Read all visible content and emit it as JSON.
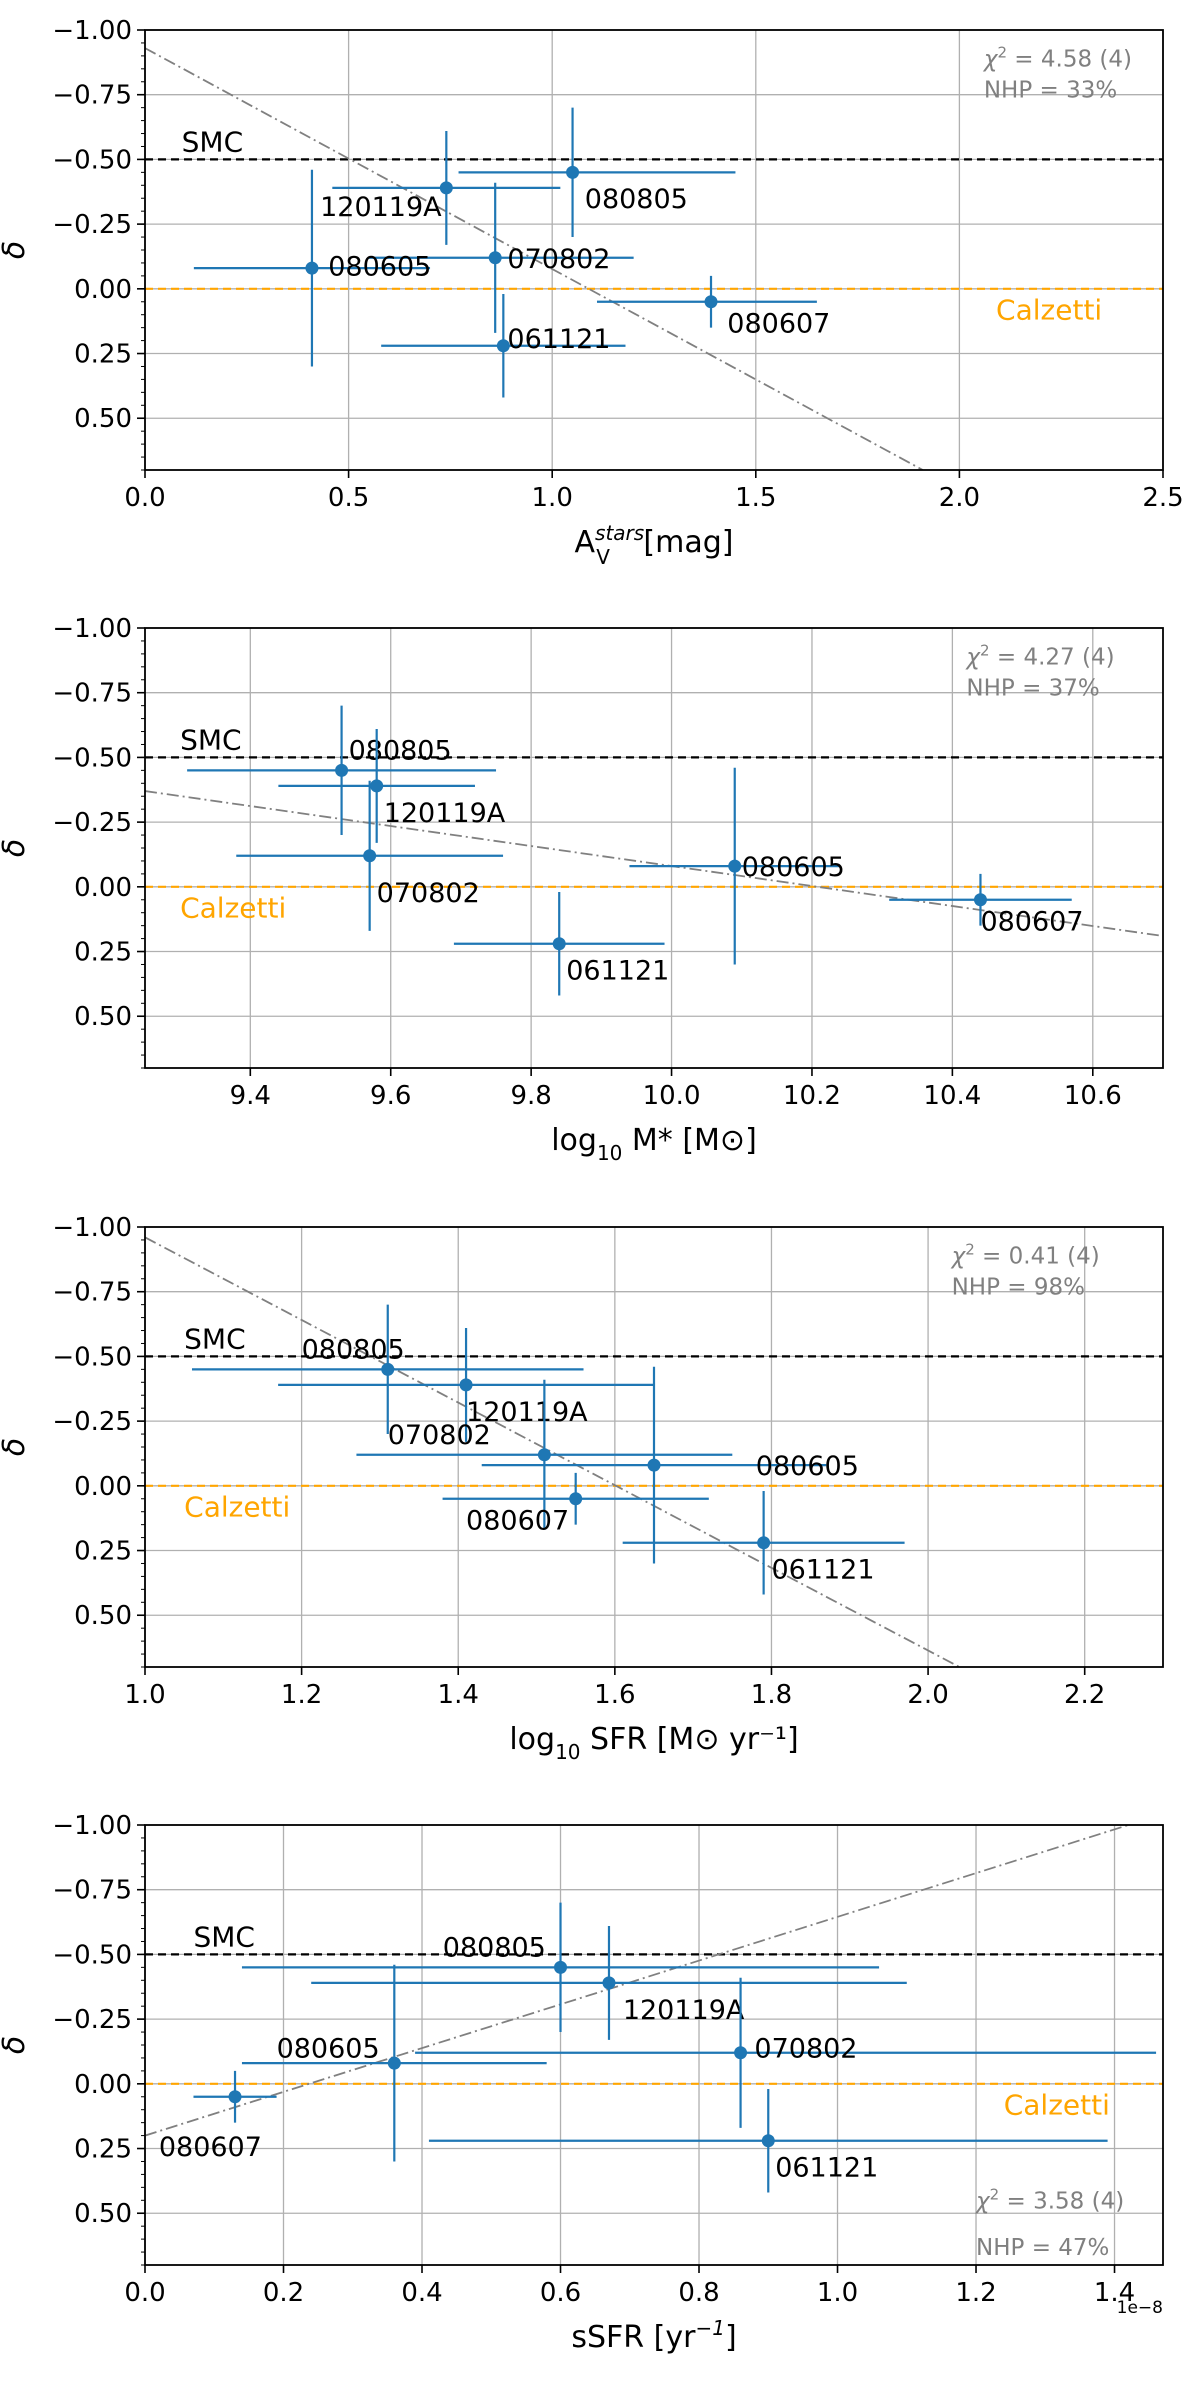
{
  "colors": {
    "point": "#1f77b4",
    "smc": "#000000",
    "calzetti": "#ffa500",
    "fit": "#808080",
    "grid": "#b0b0b0",
    "stat_text": "#808080"
  },
  "chart_data": [
    {
      "type": "scatter",
      "xlabel_main": "A",
      "xlabel_sub": "V",
      "xlabel_sup": "stars",
      "xlabel_tail": " [mag]",
      "ylabel": "δ",
      "xlim": [
        0.0,
        2.5
      ],
      "ylim": [
        -1.0,
        0.7
      ],
      "xticks": [
        0.0,
        0.5,
        1.0,
        1.5,
        2.0,
        2.5
      ],
      "xtick_labels": [
        "0.0",
        "0.5",
        "1.0",
        "1.5",
        "2.0",
        "2.5"
      ],
      "yticks": [
        -1.0,
        -0.75,
        -0.5,
        -0.25,
        0.0,
        0.25,
        0.5
      ],
      "ytick_labels": [
        "−1.00",
        "−0.75",
        "−0.50",
        "−0.25",
        "0.00",
        "0.25",
        "0.50"
      ],
      "x_offset_label": "",
      "smc": {
        "value": -0.5,
        "label": "SMC",
        "label_pos": [
          0.09,
          -0.57
        ]
      },
      "calzetti": {
        "value": 0.0,
        "label": "Calzetti",
        "label_pos": [
          2.09,
          0.08
        ]
      },
      "fit": {
        "x": [
          0.0,
          1.91
        ],
        "y": [
          -0.93,
          0.7
        ]
      },
      "stats": {
        "chi2_symbol": "χ",
        "chi2_exp": "2",
        "chi2": " = 4.58 (4)",
        "nhp": "NHP = 33%",
        "pos": [
          2.06,
          -0.89
        ],
        "nhp_pos": [
          2.06,
          -0.77
        ]
      },
      "points": [
        {
          "label": "080805",
          "x": 1.05,
          "xerr_lo": 0.28,
          "xerr_hi": 0.4,
          "y": -0.45,
          "yerr_lo": 0.25,
          "yerr_hi": 0.25,
          "label_pos": [
            1.08,
            -0.35
          ]
        },
        {
          "label": "120119A",
          "x": 0.74,
          "xerr_lo": 0.28,
          "xerr_hi": 0.28,
          "y": -0.39,
          "yerr_lo": 0.22,
          "yerr_hi": 0.22,
          "label_pos": [
            0.43,
            -0.32
          ]
        },
        {
          "label": "070802",
          "x": 0.86,
          "xerr_lo": 0.31,
          "xerr_hi": 0.34,
          "y": -0.12,
          "yerr_lo": 0.29,
          "yerr_hi": 0.29,
          "label_pos": [
            0.89,
            -0.12
          ]
        },
        {
          "label": "080605",
          "x": 0.41,
          "xerr_lo": 0.29,
          "xerr_hi": 0.29,
          "y": -0.08,
          "yerr_lo": 0.38,
          "yerr_hi": 0.38,
          "label_pos": [
            0.45,
            -0.09
          ]
        },
        {
          "label": "080607",
          "x": 1.39,
          "xerr_lo": 0.28,
          "xerr_hi": 0.26,
          "y": 0.05,
          "yerr_lo": 0.1,
          "yerr_hi": 0.1,
          "label_pos": [
            1.43,
            0.13
          ]
        },
        {
          "label": "061121",
          "x": 0.88,
          "xerr_lo": 0.3,
          "xerr_hi": 0.3,
          "y": 0.22,
          "yerr_lo": 0.2,
          "yerr_hi": 0.2,
          "label_pos": [
            0.89,
            0.19
          ]
        }
      ]
    },
    {
      "type": "scatter",
      "xlabel_main": "log",
      "xlabel_sub": "10",
      "xlabel_sup": "",
      "xlabel_tail": " M* [M⊙]",
      "ylabel": "δ",
      "xlim": [
        9.25,
        10.7
      ],
      "ylim": [
        -1.0,
        0.7
      ],
      "xticks": [
        9.4,
        9.6,
        9.8,
        10.0,
        10.2,
        10.4,
        10.6
      ],
      "xtick_labels": [
        "9.4",
        "9.6",
        "9.8",
        "10.0",
        "10.2",
        "10.4",
        "10.6"
      ],
      "yticks": [
        -1.0,
        -0.75,
        -0.5,
        -0.25,
        0.0,
        0.25,
        0.5
      ],
      "ytick_labels": [
        "−1.00",
        "−0.75",
        "−0.50",
        "−0.25",
        "0.00",
        "0.25",
        "0.50"
      ],
      "x_offset_label": "",
      "smc": {
        "value": -0.5,
        "label": "SMC",
        "label_pos": [
          9.3,
          -0.57
        ]
      },
      "calzetti": {
        "value": 0.0,
        "label": "Calzetti",
        "label_pos": [
          9.3,
          0.08
        ]
      },
      "fit": {
        "x": [
          9.25,
          10.7
        ],
        "y": [
          -0.37,
          0.19
        ]
      },
      "stats": {
        "chi2_symbol": "χ",
        "chi2_exp": "2",
        "chi2": " = 4.27 (4)",
        "nhp": "NHP = 37%",
        "pos": [
          10.42,
          -0.89
        ],
        "nhp_pos": [
          10.42,
          -0.77
        ]
      },
      "points": [
        {
          "label": "080805",
          "x": 9.53,
          "xerr_lo": 0.22,
          "xerr_hi": 0.22,
          "y": -0.45,
          "yerr_lo": 0.25,
          "yerr_hi": 0.25,
          "label_pos": [
            9.54,
            -0.53
          ]
        },
        {
          "label": "120119A",
          "x": 9.58,
          "xerr_lo": 0.14,
          "xerr_hi": 0.14,
          "y": -0.39,
          "yerr_lo": 0.22,
          "yerr_hi": 0.22,
          "label_pos": [
            9.59,
            -0.29
          ]
        },
        {
          "label": "070802",
          "x": 9.57,
          "xerr_lo": 0.19,
          "xerr_hi": 0.19,
          "y": -0.12,
          "yerr_lo": 0.29,
          "yerr_hi": 0.29,
          "label_pos": [
            9.58,
            0.02
          ]
        },
        {
          "label": "080605",
          "x": 10.09,
          "xerr_lo": 0.15,
          "xerr_hi": 0.15,
          "y": -0.08,
          "yerr_lo": 0.38,
          "yerr_hi": 0.38,
          "label_pos": [
            10.1,
            -0.08
          ]
        },
        {
          "label": "080607",
          "x": 10.44,
          "xerr_lo": 0.13,
          "xerr_hi": 0.13,
          "y": 0.05,
          "yerr_lo": 0.1,
          "yerr_hi": 0.1,
          "label_pos": [
            10.44,
            0.13
          ]
        },
        {
          "label": "061121",
          "x": 9.84,
          "xerr_lo": 0.15,
          "xerr_hi": 0.15,
          "y": 0.22,
          "yerr_lo": 0.2,
          "yerr_hi": 0.2,
          "label_pos": [
            9.85,
            0.32
          ]
        }
      ]
    },
    {
      "type": "scatter",
      "xlabel_main": "log",
      "xlabel_sub": "10",
      "xlabel_sup": "",
      "xlabel_tail": " SFR  [M⊙ yr⁻¹]",
      "ylabel": "δ",
      "xlim": [
        1.0,
        2.3
      ],
      "ylim": [
        -1.0,
        0.7
      ],
      "xticks": [
        1.0,
        1.2,
        1.4,
        1.6,
        1.8,
        2.0,
        2.2
      ],
      "xtick_labels": [
        "1.0",
        "1.2",
        "1.4",
        "1.6",
        "1.8",
        "2.0",
        "2.2"
      ],
      "yticks": [
        -1.0,
        -0.75,
        -0.5,
        -0.25,
        0.0,
        0.25,
        0.5
      ],
      "ytick_labels": [
        "−1.00",
        "−0.75",
        "−0.50",
        "−0.25",
        "0.00",
        "0.25",
        "0.50"
      ],
      "x_offset_label": "",
      "smc": {
        "value": -0.5,
        "label": "SMC",
        "label_pos": [
          1.05,
          -0.57
        ]
      },
      "calzetti": {
        "value": 0.0,
        "label": "Calzetti",
        "label_pos": [
          1.05,
          0.08
        ]
      },
      "fit": {
        "x": [
          1.0,
          2.04
        ],
        "y": [
          -0.96,
          0.7
        ]
      },
      "stats": {
        "chi2_symbol": "χ",
        "chi2_exp": "2",
        "chi2": " = 0.41 (4)",
        "nhp": "NHP = 98%",
        "pos": [
          2.03,
          -0.89
        ],
        "nhp_pos": [
          2.03,
          -0.77
        ]
      },
      "points": [
        {
          "label": "080805",
          "x": 1.31,
          "xerr_lo": 0.25,
          "xerr_hi": 0.25,
          "y": -0.45,
          "yerr_lo": 0.25,
          "yerr_hi": 0.25,
          "label_pos": [
            1.2,
            -0.53
          ]
        },
        {
          "label": "120119A",
          "x": 1.41,
          "xerr_lo": 0.24,
          "xerr_hi": 0.24,
          "y": -0.39,
          "yerr_lo": 0.22,
          "yerr_hi": 0.22,
          "label_pos": [
            1.41,
            -0.29
          ]
        },
        {
          "label": "070802",
          "x": 1.51,
          "xerr_lo": 0.24,
          "xerr_hi": 0.24,
          "y": -0.12,
          "yerr_lo": 0.29,
          "yerr_hi": 0.29,
          "label_pos": [
            1.31,
            -0.2
          ]
        },
        {
          "label": "080605",
          "x": 1.65,
          "xerr_lo": 0.22,
          "xerr_hi": 0.22,
          "y": -0.08,
          "yerr_lo": 0.38,
          "yerr_hi": 0.38,
          "label_pos": [
            1.78,
            -0.08
          ]
        },
        {
          "label": "080607",
          "x": 1.55,
          "xerr_lo": 0.17,
          "xerr_hi": 0.17,
          "y": 0.05,
          "yerr_lo": 0.1,
          "yerr_hi": 0.1,
          "label_pos": [
            1.41,
            0.13
          ]
        },
        {
          "label": "061121",
          "x": 1.79,
          "xerr_lo": 0.18,
          "xerr_hi": 0.18,
          "y": 0.22,
          "yerr_lo": 0.2,
          "yerr_hi": 0.2,
          "label_pos": [
            1.8,
            0.32
          ]
        }
      ]
    },
    {
      "type": "scatter",
      "xlabel_main": "sSFR  [yr",
      "xlabel_sub": "",
      "xlabel_sup": "−1",
      "xlabel_tail": "]",
      "ylabel": "δ",
      "xlim": [
        0.0,
        1.47
      ],
      "ylim": [
        -1.0,
        0.7
      ],
      "xticks": [
        0.0,
        0.2,
        0.4,
        0.6,
        0.8,
        1.0,
        1.2,
        1.4
      ],
      "xtick_labels": [
        "0.0",
        "0.2",
        "0.4",
        "0.6",
        "0.8",
        "1.0",
        "1.2",
        "1.4"
      ],
      "yticks": [
        -1.0,
        -0.75,
        -0.5,
        -0.25,
        0.0,
        0.25,
        0.5
      ],
      "ytick_labels": [
        "−1.00",
        "−0.75",
        "−0.50",
        "−0.25",
        "0.00",
        "0.25",
        "0.50"
      ],
      "x_offset_label": "1e−8",
      "smc": {
        "value": -0.5,
        "label": "SMC",
        "label_pos": [
          0.07,
          -0.57
        ]
      },
      "calzetti": {
        "value": 0.0,
        "label": "Calzetti",
        "label_pos": [
          1.24,
          0.08
        ]
      },
      "fit": {
        "x": [
          0.0,
          1.42
        ],
        "y": [
          0.2,
          -1.0
        ]
      },
      "stats": {
        "chi2_symbol": "χ",
        "chi2_exp": "2",
        "chi2": " = 3.58 (4)",
        "nhp": "NHP = 47%",
        "pos": [
          1.2,
          0.45
        ],
        "nhp_pos": [
          1.2,
          0.63
        ]
      },
      "points": [
        {
          "label": "080805",
          "x": 0.6,
          "xerr_lo": 0.46,
          "xerr_hi": 0.46,
          "y": -0.45,
          "yerr_lo": 0.25,
          "yerr_hi": 0.25,
          "label_pos": [
            0.43,
            -0.53
          ]
        },
        {
          "label": "120119A",
          "x": 0.67,
          "xerr_lo": 0.43,
          "xerr_hi": 0.43,
          "y": -0.39,
          "yerr_lo": 0.22,
          "yerr_hi": 0.22,
          "label_pos": [
            0.69,
            -0.29
          ]
        },
        {
          "label": "070802",
          "x": 0.86,
          "xerr_lo": 0.47,
          "xerr_hi": 0.6,
          "y": -0.12,
          "yerr_lo": 0.29,
          "yerr_hi": 0.29,
          "label_pos": [
            0.88,
            -0.14
          ]
        },
        {
          "label": "080605",
          "x": 0.36,
          "xerr_lo": 0.22,
          "xerr_hi": 0.22,
          "y": -0.08,
          "yerr_lo": 0.38,
          "yerr_hi": 0.38,
          "label_pos": [
            0.19,
            -0.14
          ]
        },
        {
          "label": "080607",
          "x": 0.13,
          "xerr_lo": 0.06,
          "xerr_hi": 0.06,
          "y": 0.05,
          "yerr_lo": 0.1,
          "yerr_hi": 0.1,
          "label_pos": [
            0.02,
            0.24
          ]
        },
        {
          "label": "061121",
          "x": 0.9,
          "xerr_lo": 0.49,
          "xerr_hi": 0.49,
          "y": 0.22,
          "yerr_lo": 0.2,
          "yerr_hi": 0.2,
          "label_pos": [
            0.91,
            0.32
          ]
        }
      ]
    }
  ]
}
